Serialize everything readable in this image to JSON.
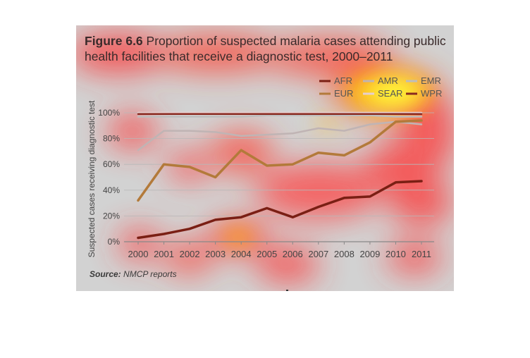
{
  "figure": {
    "label": "Figure 6.6",
    "title_line1": "Proportion of suspected malaria cases attending public",
    "title_line2": "health facilities that receive a diagnostic test, 2000–2011",
    "source_label": "Source:",
    "source_text": "NMCP reports"
  },
  "chart_data": {
    "type": "line",
    "ylabel": "Suspected cases receiving diagnostic test",
    "xlabel": "",
    "ylim": [
      0,
      100
    ],
    "y_tick_labels": [
      "0%",
      "20%",
      "40%",
      "60%",
      "80%",
      "100%"
    ],
    "grid": true,
    "legend_position": "top-right",
    "x": [
      "2000",
      "2001",
      "2002",
      "2003",
      "2004",
      "2005",
      "2006",
      "2007",
      "2008",
      "2009",
      "2010",
      "2011"
    ],
    "series": [
      {
        "name": "AFR",
        "color": "#7a1f14",
        "values": [
          3,
          6,
          10,
          17,
          19,
          26,
          19,
          27,
          34,
          35,
          46,
          47
        ]
      },
      {
        "name": "AMR",
        "color": "#c0b4b4",
        "values": [
          71,
          86,
          86,
          85,
          82,
          83,
          84,
          88,
          86,
          91,
          93,
          91
        ]
      },
      {
        "name": "EMR",
        "color": "#bdbdbd",
        "values": [
          97,
          97,
          97,
          97,
          97,
          98,
          98,
          98,
          98,
          98,
          97,
          97
        ]
      },
      {
        "name": "EUR",
        "color": "#b37a3a",
        "values": [
          32,
          60,
          58,
          50,
          71,
          59,
          60,
          69,
          67,
          77,
          93,
          94
        ]
      },
      {
        "name": "SEAR",
        "color": "#e6cfcf",
        "values": [
          100,
          100,
          100,
          100,
          100,
          100,
          100,
          100,
          100,
          100,
          100,
          100
        ]
      },
      {
        "name": "WPR",
        "color": "#8a2a20",
        "values": [
          99,
          99,
          99,
          99,
          99,
          99,
          99,
          99,
          99,
          99,
          99,
          99
        ]
      }
    ]
  },
  "legend": [
    {
      "name": "AFR",
      "color": "#7a1f14"
    },
    {
      "name": "AMR",
      "color": "#c0b4b4"
    },
    {
      "name": "EMR",
      "color": "#bdbdbd"
    },
    {
      "name": "EUR",
      "color": "#b37a3a"
    },
    {
      "name": "SEAR",
      "color": "#e6cfcf"
    },
    {
      "name": "WPR",
      "color": "#8a2a20"
    }
  ]
}
